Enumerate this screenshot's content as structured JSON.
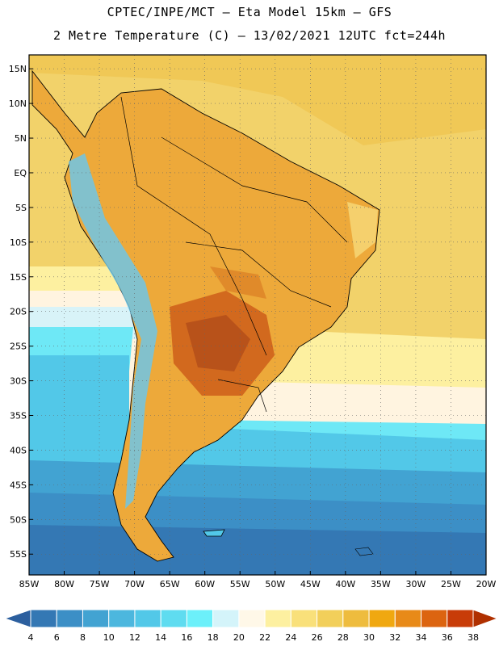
{
  "header": {
    "line1": "CPTEC/INPE/MCT –  Eta Model 15km – GFS",
    "line2": "2 Metre Temperature (C) – 13/02/2021 12UTC fct=244h"
  },
  "map": {
    "lat_labels": [
      "15N",
      "10N",
      "5N",
      "EQ",
      "5S",
      "10S",
      "15S",
      "20S",
      "25S",
      "30S",
      "35S",
      "40S",
      "45S",
      "50S",
      "55S"
    ],
    "lon_labels": [
      "85W",
      "80W",
      "75W",
      "70W",
      "65W",
      "60W",
      "55W",
      "50W",
      "45W",
      "40W",
      "35W",
      "30W",
      "25W",
      "20W"
    ],
    "lon_range": [
      -85,
      -20
    ],
    "lat_range": [
      -58,
      17
    ]
  },
  "colorbar": {
    "ticks": [
      "4",
      "6",
      "8",
      "10",
      "12",
      "14",
      "16",
      "18",
      "20",
      "22",
      "24",
      "26",
      "28",
      "30",
      "32",
      "34",
      "36",
      "38"
    ],
    "colors": [
      "#2c5f9e",
      "#3478b4",
      "#3c8fc6",
      "#42a3d2",
      "#4cb7de",
      "#52c8e8",
      "#5fdcf0",
      "#6cf0fa",
      "#d4f4fa",
      "#fff8e8",
      "#fdf0a0",
      "#f9e07a",
      "#f2cf5a",
      "#eebc3e",
      "#f0a810",
      "#e88a18",
      "#dc6410",
      "#c83c08",
      "#b03000"
    ]
  }
}
